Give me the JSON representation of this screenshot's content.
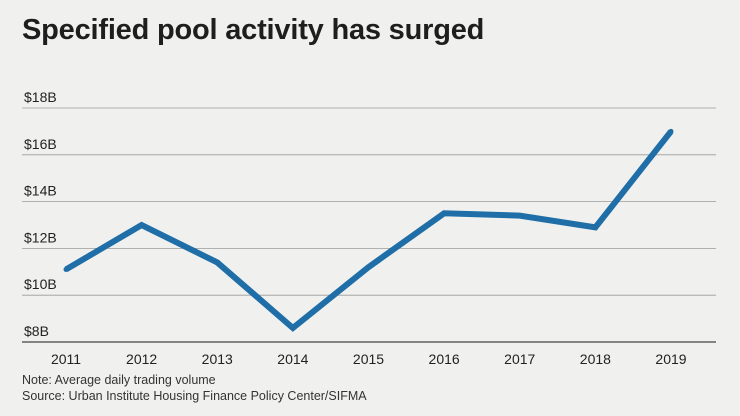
{
  "title": "Specified pool activity has surged",
  "notes": {
    "note": "Note: Average daily trading volume",
    "source": "Source: Urban Institute Housing Finance Policy Center/SIFMA"
  },
  "colors": {
    "line": "#1f6ea7",
    "grid": "#9a9a9a",
    "background": "#f0f1ef"
  },
  "chart_data": {
    "type": "line",
    "title": "Specified pool activity has surged",
    "xlabel": "",
    "ylabel": "",
    "categories": [
      "2011",
      "2012",
      "2013",
      "2014",
      "2015",
      "2016",
      "2017",
      "2018",
      "2019"
    ],
    "series": [
      {
        "name": "Average daily trading volume ($B)",
        "values": [
          11.1,
          13.0,
          11.4,
          8.6,
          11.2,
          13.5,
          13.4,
          12.9,
          17.0
        ]
      }
    ],
    "yticks": [
      8,
      10,
      12,
      14,
      16,
      18
    ],
    "ytick_labels": [
      "$8B",
      "$10B",
      "$12B",
      "$14B",
      "$16B",
      "$18B"
    ],
    "ylim": [
      8,
      18
    ],
    "grid": true
  }
}
